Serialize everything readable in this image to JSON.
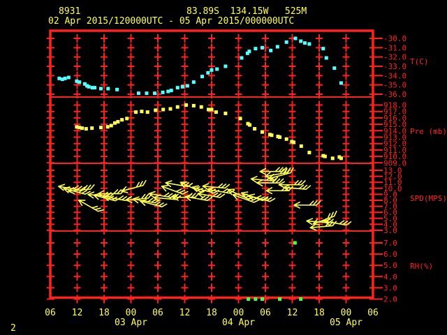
{
  "header": {
    "station_id": "8931",
    "coordinates": "83.89S  134.15W   525M",
    "time_range": "02 Apr 2015/120000UTC - 05 Apr 2015/000000UTC"
  },
  "corner_label": "2",
  "colors": {
    "background": "#000000",
    "frame_red": "#ff2020",
    "text_yellow": "#ffff55",
    "temperature_series": "#55ffff",
    "pressure_series": "#ffff55",
    "wind_series": "#ffff55",
    "humidity_series": "#44ff44"
  },
  "chart_data": {
    "type": "scatter",
    "title": "station meteogram",
    "x_axis": {
      "start": "02 Apr 2015 06UTC",
      "end": "05 Apr 2015 06UTC",
      "span_hours": 72,
      "tick_interval_hours": 6,
      "hour_labels": [
        "06",
        "12",
        "18",
        "00",
        "06",
        "12",
        "18",
        "00",
        "06",
        "12",
        "18",
        "00",
        "06"
      ],
      "date_labels": [
        {
          "text": "03 Apr",
          "tick_index": 3
        },
        {
          "text": "04 Apr",
          "tick_index": 7
        },
        {
          "text": "05 Apr",
          "tick_index": 11
        }
      ],
      "x_unit": "hours_from_axis_start"
    },
    "panels": [
      {
        "id": "temperature",
        "axis_title": "T(C)",
        "yticks": [
          -30.0,
          -31.0,
          -32.0,
          -33.0,
          -34.0,
          -35.0,
          -36.0
        ],
        "points": [
          [
            2.0,
            -34.3
          ],
          [
            2.7,
            -34.4
          ],
          [
            3.3,
            -34.3
          ],
          [
            4.1,
            -34.2
          ],
          [
            5.9,
            -34.6
          ],
          [
            6.5,
            -34.7
          ],
          [
            7.7,
            -34.9
          ],
          [
            8.2,
            -35.1
          ],
          [
            8.6,
            -35.2
          ],
          [
            9.4,
            -35.3
          ],
          [
            9.9,
            -35.3
          ],
          [
            11.3,
            -35.4
          ],
          [
            12.9,
            -35.4
          ],
          [
            14.9,
            -35.5
          ],
          [
            19.7,
            -35.9
          ],
          [
            21.5,
            -35.9
          ],
          [
            23.3,
            -35.9
          ],
          [
            25.1,
            -35.8
          ],
          [
            26.3,
            -35.7
          ],
          [
            27.0,
            -35.6
          ],
          [
            28.4,
            -35.3
          ],
          [
            29.5,
            -35.2
          ],
          [
            30.6,
            -35.1
          ],
          [
            32.0,
            -34.7
          ],
          [
            33.9,
            -34.1
          ],
          [
            35.2,
            -33.7
          ],
          [
            36.0,
            -33.4
          ],
          [
            37.2,
            -33.3
          ],
          [
            39.1,
            -33.0
          ],
          [
            42.7,
            -32.1
          ],
          [
            44.0,
            -31.6
          ],
          [
            44.4,
            -31.4
          ],
          [
            45.8,
            -31.1
          ],
          [
            47.3,
            -31.0
          ],
          [
            49.2,
            -31.3
          ],
          [
            50.7,
            -30.9
          ],
          [
            52.7,
            -30.4
          ],
          [
            54.7,
            -30.0
          ],
          [
            55.9,
            -30.3
          ],
          [
            56.8,
            -30.5
          ],
          [
            57.8,
            -30.6
          ],
          [
            60.9,
            -31.1
          ],
          [
            61.6,
            -32.1
          ],
          [
            63.4,
            -33.2
          ],
          [
            64.9,
            -34.8
          ]
        ]
      },
      {
        "id": "pressure",
        "axis_title": "Pre (mb)",
        "yticks": [
          918.0,
          917.0,
          916.0,
          915.0,
          914.0,
          913.0,
          912.0,
          911.0,
          910.0,
          909.0
        ],
        "points": [
          [
            5.9,
            914.6
          ],
          [
            6.5,
            914.5
          ],
          [
            7.1,
            914.4
          ],
          [
            8.0,
            914.3
          ],
          [
            9.3,
            914.4
          ],
          [
            11.3,
            914.5
          ],
          [
            12.8,
            914.6
          ],
          [
            13.6,
            914.8
          ],
          [
            14.4,
            915.2
          ],
          [
            15.1,
            915.4
          ],
          [
            16.0,
            915.7
          ],
          [
            17.1,
            915.9
          ],
          [
            19.1,
            916.9
          ],
          [
            20.4,
            917.0
          ],
          [
            21.7,
            916.9
          ],
          [
            23.5,
            917.2
          ],
          [
            25.2,
            917.3
          ],
          [
            26.8,
            917.4
          ],
          [
            28.4,
            917.7
          ],
          [
            30.3,
            918.0
          ],
          [
            32.0,
            917.9
          ],
          [
            33.7,
            917.7
          ],
          [
            35.3,
            917.3
          ],
          [
            36.0,
            917.3
          ],
          [
            37.0,
            916.9
          ],
          [
            39.1,
            916.7
          ],
          [
            42.4,
            915.9
          ],
          [
            44.1,
            915.1
          ],
          [
            44.5,
            914.9
          ],
          [
            45.6,
            914.3
          ],
          [
            47.3,
            913.8
          ],
          [
            49.0,
            913.4
          ],
          [
            49.4,
            913.3
          ],
          [
            50.8,
            913.1
          ],
          [
            51.2,
            913.0
          ],
          [
            52.7,
            912.7
          ],
          [
            53.9,
            912.3
          ],
          [
            54.3,
            912.2
          ],
          [
            56.0,
            911.6
          ],
          [
            57.8,
            910.6
          ],
          [
            60.9,
            910.1
          ],
          [
            61.3,
            910.0
          ],
          [
            63.0,
            909.7
          ],
          [
            64.5,
            909.9
          ],
          [
            64.9,
            909.7
          ]
        ]
      },
      {
        "id": "wind_speed",
        "axis_title": "SPD(MPS)",
        "yticks": [
          13.0,
          12.0,
          11.0,
          10.0,
          9.0,
          8.0,
          7.0,
          6.0,
          5.0,
          4.0,
          3.0
        ],
        "barb_fields": [
          "hours",
          "speed_mps",
          "screen_direction_deg"
        ],
        "barbs": [
          [
            4.3,
            10.0,
            190
          ],
          [
            5.4,
            9.5,
            195
          ],
          [
            6.5,
            9.7,
            175
          ],
          [
            8.5,
            7.1,
            210
          ],
          [
            10.9,
            8.8,
            185
          ],
          [
            12.1,
            8.4,
            195
          ],
          [
            13.2,
            9.1,
            180
          ],
          [
            14.3,
            8.3,
            190
          ],
          [
            18.3,
            10.0,
            165
          ],
          [
            19.4,
            8.2,
            175
          ],
          [
            20.9,
            7.9,
            190
          ],
          [
            22.5,
            7.4,
            195
          ],
          [
            24.5,
            8.8,
            190
          ],
          [
            25.6,
            8.3,
            185
          ],
          [
            27.2,
            9.7,
            200
          ],
          [
            28.2,
            10.6,
            190
          ],
          [
            29.8,
            8.5,
            180
          ],
          [
            31.3,
            10.2,
            205
          ],
          [
            32.6,
            8.3,
            190
          ],
          [
            34.1,
            9.7,
            195
          ],
          [
            35.4,
            8.8,
            190
          ],
          [
            36.5,
            10.2,
            185
          ],
          [
            37.6,
            9.5,
            190
          ],
          [
            41.9,
            9.0,
            205
          ],
          [
            43.1,
            8.3,
            200
          ],
          [
            45.0,
            8.6,
            200
          ],
          [
            46.6,
            8.3,
            195
          ],
          [
            47.3,
            11.4,
            185
          ],
          [
            48.6,
            10.9,
            180
          ],
          [
            49.3,
            12.8,
            180
          ],
          [
            50.4,
            12.3,
            170
          ],
          [
            51.2,
            12.1,
            165
          ],
          [
            50.7,
            9.6,
            180
          ],
          [
            53.5,
            10.6,
            180
          ],
          [
            54.6,
            10.0,
            185
          ],
          [
            56.9,
            7.2,
            180
          ],
          [
            59.7,
            4.4,
            185
          ],
          [
            60.5,
            3.6,
            175
          ],
          [
            61.0,
            4.7,
            160
          ],
          [
            63.6,
            4.2,
            190
          ]
        ]
      },
      {
        "id": "relative_humidity",
        "axis_title": "RH(%)",
        "yticks": [
          7.0,
          6.0,
          5.0,
          4.0,
          3.0,
          2.0
        ],
        "points": [
          [
            54.6,
            7.0
          ],
          [
            44.2,
            2.0
          ],
          [
            45.8,
            2.0
          ],
          [
            47.3,
            2.0
          ],
          [
            51.2,
            2.0
          ],
          [
            55.9,
            2.0
          ]
        ]
      }
    ]
  }
}
